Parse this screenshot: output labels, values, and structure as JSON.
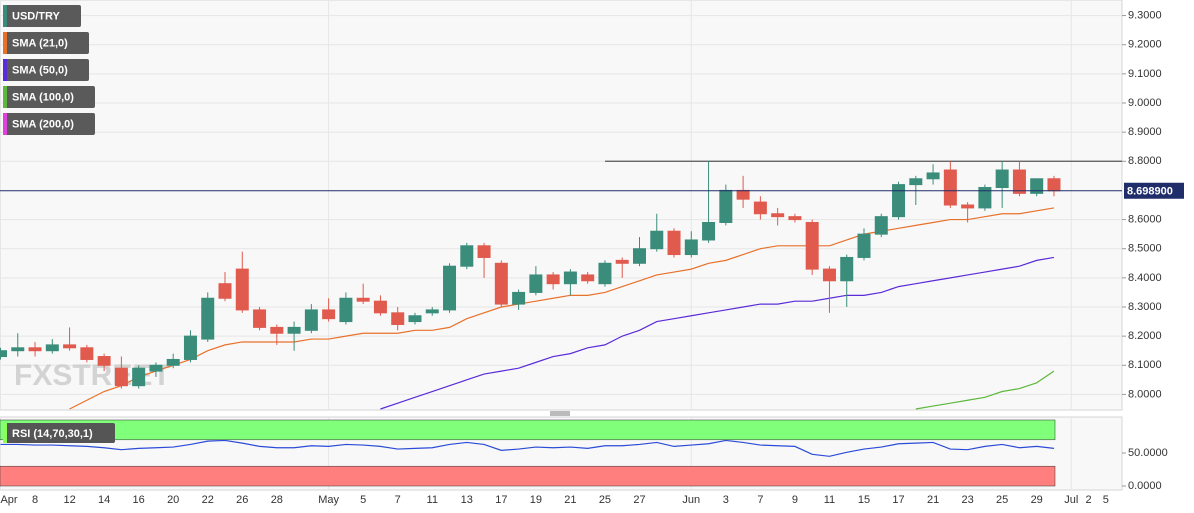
{
  "chart_data": [
    {
      "type": "candlestick",
      "symbol": "USD/TRY",
      "symbol_color": "#3c8a7a",
      "watermark": "FXSTREET",
      "categories": [
        "Apr",
        null,
        "8",
        null,
        "12",
        null,
        "14",
        null,
        "16",
        null,
        "20",
        null,
        "22",
        null,
        "26",
        null,
        "28",
        null,
        null,
        "May",
        null,
        "5",
        null,
        "7",
        null,
        "11",
        null,
        "13",
        null,
        "17",
        null,
        "19",
        null,
        "21",
        null,
        "25",
        null,
        "27",
        null,
        null,
        "Jun",
        null,
        "3",
        null,
        "7",
        null,
        "9",
        null,
        "11",
        null,
        "15",
        null,
        "17",
        null,
        "21",
        null,
        "23",
        null,
        "25",
        null,
        "29",
        null,
        "Jul",
        "2",
        "5"
      ],
      "open": [
        8.13,
        8.15,
        8.16,
        8.15,
        8.17,
        8.16,
        8.13,
        8.09,
        8.03,
        8.08,
        8.1,
        8.12,
        8.19,
        8.38,
        8.43,
        8.29,
        8.23,
        8.21,
        8.22,
        8.29,
        8.25,
        8.33,
        8.32,
        8.28,
        8.25,
        8.28,
        8.29,
        8.44,
        8.51,
        8.45,
        8.31,
        8.35,
        8.41,
        8.38,
        8.41,
        8.38,
        8.46,
        8.45,
        8.5,
        8.56,
        8.48,
        8.53,
        8.59,
        8.7,
        8.66,
        8.62,
        8.61,
        8.59,
        8.43,
        8.39,
        8.47,
        8.55,
        8.61,
        8.72,
        8.74,
        8.77,
        8.65,
        8.64,
        8.71,
        8.77,
        8.69,
        8.74,
        null,
        null,
        null
      ],
      "high": [
        8.16,
        8.21,
        8.18,
        8.19,
        8.23,
        8.17,
        8.14,
        8.13,
        8.1,
        8.11,
        8.14,
        8.22,
        8.35,
        8.42,
        8.49,
        8.3,
        8.24,
        8.25,
        8.31,
        8.33,
        8.35,
        8.38,
        8.34,
        8.3,
        8.28,
        8.3,
        8.45,
        8.52,
        8.52,
        8.46,
        8.36,
        8.44,
        8.42,
        8.43,
        8.42,
        8.46,
        8.47,
        8.54,
        8.62,
        8.57,
        8.56,
        8.8,
        8.72,
        8.75,
        8.68,
        8.64,
        8.62,
        8.6,
        8.44,
        8.48,
        8.57,
        8.62,
        8.73,
        8.75,
        8.79,
        8.8,
        8.66,
        8.72,
        8.8,
        8.8,
        8.74,
        8.75,
        null,
        null,
        null
      ],
      "low": [
        8.12,
        8.13,
        8.13,
        8.14,
        8.15,
        8.11,
        8.08,
        8.02,
        8.02,
        8.06,
        8.09,
        8.11,
        8.18,
        8.32,
        8.28,
        8.22,
        8.17,
        8.15,
        8.21,
        8.25,
        8.24,
        8.31,
        8.27,
        8.22,
        8.24,
        8.27,
        8.28,
        8.43,
        8.4,
        8.3,
        8.29,
        8.34,
        8.36,
        8.34,
        8.38,
        8.37,
        8.4,
        8.44,
        8.49,
        8.47,
        8.47,
        8.52,
        8.58,
        8.64,
        8.6,
        8.58,
        8.59,
        8.41,
        8.28,
        8.3,
        8.46,
        8.54,
        8.6,
        8.65,
        8.72,
        8.64,
        8.59,
        8.63,
        8.64,
        8.68,
        8.68,
        8.68,
        null,
        null,
        null
      ],
      "close": [
        8.15,
        8.16,
        8.15,
        8.17,
        8.16,
        8.12,
        8.1,
        8.03,
        8.09,
        8.1,
        8.12,
        8.2,
        8.33,
        8.33,
        8.29,
        8.23,
        8.21,
        8.23,
        8.29,
        8.26,
        8.33,
        8.32,
        8.28,
        8.24,
        8.27,
        8.29,
        8.44,
        8.51,
        8.47,
        8.31,
        8.35,
        8.41,
        8.38,
        8.42,
        8.39,
        8.45,
        8.45,
        8.5,
        8.56,
        8.48,
        8.53,
        8.59,
        8.7,
        8.67,
        8.62,
        8.61,
        8.6,
        8.43,
        8.39,
        8.47,
        8.55,
        8.61,
        8.72,
        8.74,
        8.76,
        8.65,
        8.64,
        8.71,
        8.77,
        8.69,
        8.74,
        8.6989,
        null,
        null,
        null
      ],
      "up_color": "#3b8d7b",
      "down_color": "#e05a4e",
      "series": [
        {
          "name": "SMA (21,0)",
          "color": "#e8712a",
          "values": [
            null,
            null,
            null,
            null,
            7.95,
            7.98,
            8.01,
            8.03,
            8.06,
            8.08,
            8.1,
            8.12,
            8.15,
            8.17,
            8.18,
            8.18,
            8.18,
            8.18,
            8.19,
            8.19,
            8.2,
            8.21,
            8.21,
            8.21,
            8.22,
            8.22,
            8.23,
            8.26,
            8.28,
            8.3,
            8.31,
            8.32,
            8.33,
            8.34,
            8.34,
            8.35,
            8.37,
            8.39,
            8.41,
            8.42,
            8.43,
            8.45,
            8.46,
            8.48,
            8.5,
            8.51,
            8.51,
            8.51,
            8.51,
            8.53,
            8.55,
            8.56,
            8.57,
            8.58,
            8.59,
            8.6,
            8.6,
            8.61,
            8.62,
            8.62,
            8.63,
            8.64,
            null,
            null,
            null
          ]
        },
        {
          "name": "SMA (50,0)",
          "color": "#5a2bd9",
          "values": [
            null,
            null,
            null,
            null,
            null,
            null,
            null,
            null,
            null,
            null,
            null,
            null,
            null,
            null,
            null,
            null,
            null,
            null,
            null,
            null,
            null,
            null,
            7.95,
            7.97,
            7.99,
            8.01,
            8.03,
            8.05,
            8.07,
            8.08,
            8.09,
            8.11,
            8.13,
            8.14,
            8.16,
            8.17,
            8.2,
            8.22,
            8.25,
            8.26,
            8.27,
            8.28,
            8.29,
            8.3,
            8.31,
            8.31,
            8.32,
            8.32,
            8.33,
            8.34,
            8.34,
            8.35,
            8.37,
            8.38,
            8.39,
            8.4,
            8.41,
            8.42,
            8.43,
            8.44,
            8.46,
            8.47,
            null,
            null,
            null
          ]
        },
        {
          "name": "SMA (100,0)",
          "color": "#5cb83c",
          "values": [
            null,
            null,
            null,
            null,
            null,
            null,
            null,
            null,
            null,
            null,
            null,
            null,
            null,
            null,
            null,
            null,
            null,
            null,
            null,
            null,
            null,
            null,
            null,
            null,
            null,
            null,
            null,
            null,
            null,
            null,
            null,
            null,
            null,
            null,
            null,
            null,
            null,
            null,
            null,
            null,
            null,
            null,
            null,
            null,
            null,
            null,
            null,
            null,
            null,
            null,
            null,
            null,
            null,
            7.95,
            7.96,
            7.97,
            7.98,
            7.99,
            8.01,
            8.02,
            8.04,
            8.08,
            null,
            null,
            null
          ]
        },
        {
          "name": "SMA (200,0)",
          "color": "#e040e0"
        }
      ],
      "ylim": [
        7.95,
        9.35
      ],
      "yticks": [
        {
          "value": 9.3,
          "label": "9.3000"
        },
        {
          "value": 9.2,
          "label": "9.2000"
        },
        {
          "value": 9.1,
          "label": "9.1000"
        },
        {
          "value": 9.0,
          "label": "9.0000"
        },
        {
          "value": 8.9,
          "label": "8.9000"
        },
        {
          "value": 8.8,
          "label": "8.8000"
        },
        {
          "value": 8.6,
          "label": "8.6000"
        },
        {
          "value": 8.5,
          "label": "8.5000"
        },
        {
          "value": 8.4,
          "label": "8.4000"
        },
        {
          "value": 8.3,
          "label": "8.3000"
        },
        {
          "value": 8.2,
          "label": "8.2000"
        },
        {
          "value": 8.1,
          "label": "8.1000"
        },
        {
          "value": 8.0,
          "label": "8.0000"
        }
      ],
      "grid": true,
      "resistance": {
        "value": 8.8,
        "color": "#555555"
      },
      "current_price": {
        "value": 8.6989,
        "label": "8.698900",
        "color": "#1f2d6b"
      }
    },
    {
      "type": "line",
      "title": "RSI (14,70,30,1)",
      "title_color": "#8aff5a",
      "ylim": [
        0,
        100
      ],
      "yticks": [
        {
          "value": 50,
          "label": "50.0000"
        },
        {
          "value": 0,
          "label": "0.0000"
        }
      ],
      "bands": [
        {
          "from": 70,
          "to": 100,
          "color": "#80ff7a"
        },
        {
          "from": 0,
          "to": 30,
          "color": "#ff7f7f"
        }
      ],
      "color": "#2a4bd7",
      "values": [
        63,
        63,
        62,
        62,
        61,
        60,
        58,
        55,
        57,
        58,
        59,
        63,
        68,
        69,
        65,
        60,
        58,
        58,
        61,
        60,
        63,
        62,
        60,
        56,
        57,
        58,
        63,
        66,
        63,
        54,
        56,
        59,
        58,
        59,
        57,
        61,
        61,
        63,
        66,
        60,
        62,
        64,
        69,
        66,
        62,
        61,
        60,
        48,
        45,
        51,
        56,
        59,
        64,
        65,
        66,
        56,
        55,
        60,
        63,
        58,
        60,
        57,
        null,
        null,
        null
      ]
    }
  ]
}
